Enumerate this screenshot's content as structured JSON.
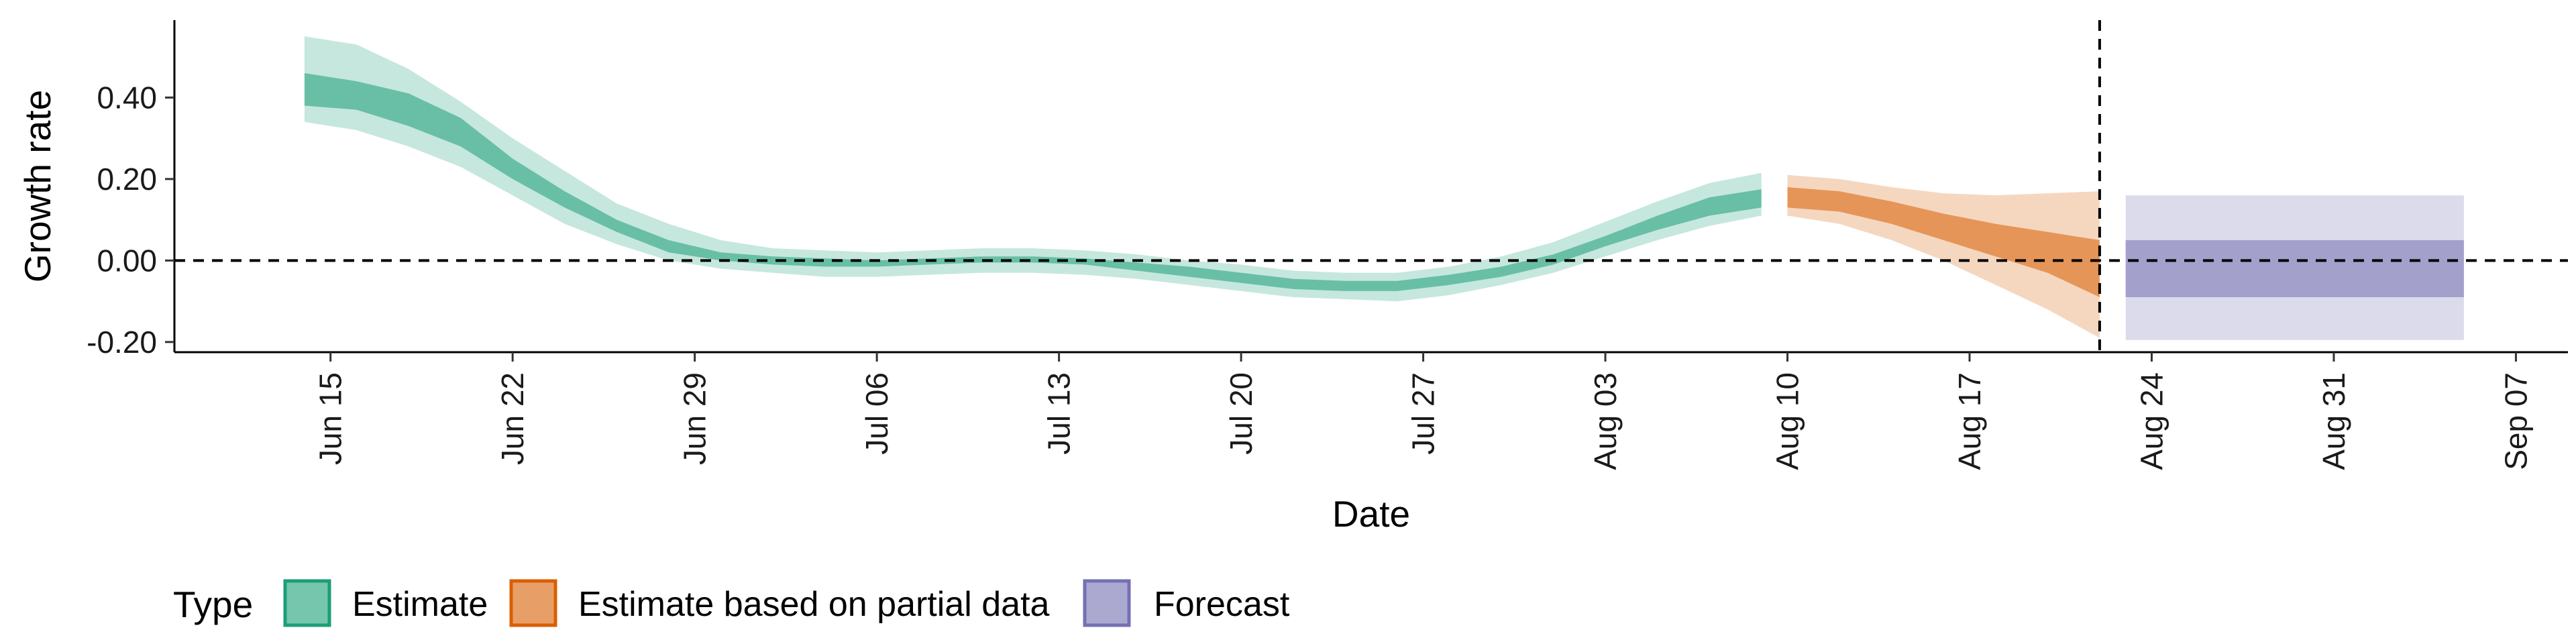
{
  "chart_data": {
    "type": "area",
    "xlabel": "Date",
    "ylabel": "Growth rate",
    "x_tick_labels": [
      "Jun 15",
      "Jun 22",
      "Jun 29",
      "Jul 06",
      "Jul 13",
      "Jul 20",
      "Jul 27",
      "Aug 03",
      "Aug 10",
      "Aug 17",
      "Aug 24",
      "Aug 31",
      "Sep 07"
    ],
    "y_tick_labels": [
      "-0.20",
      "0.00",
      "0.20",
      "0.40"
    ],
    "y_ticks": [
      -0.2,
      0.0,
      0.2,
      0.4
    ],
    "ylim": [
      -0.225,
      0.59
    ],
    "xlim": [
      "2020-06-09",
      "2020-09-09"
    ],
    "x_ticks": [
      "2020-06-15",
      "2020-06-22",
      "2020-06-29",
      "2020-07-06",
      "2020-07-13",
      "2020-07-20",
      "2020-07-27",
      "2020-08-03",
      "2020-08-10",
      "2020-08-17",
      "2020-08-24",
      "2020-08-31",
      "2020-09-07"
    ],
    "reference_lines": [
      {
        "orientation": "horizontal",
        "style": "dashed",
        "y": 0.0
      },
      {
        "orientation": "vertical",
        "style": "dashed",
        "x": "2020-08-22"
      }
    ],
    "legend": {
      "title": "Type",
      "position": "bottom-left"
    },
    "series": [
      {
        "name": "Estimate",
        "color": "#1B9E77",
        "x": [
          "2020-06-14",
          "2020-06-16",
          "2020-06-18",
          "2020-06-20",
          "2020-06-22",
          "2020-06-24",
          "2020-06-26",
          "2020-06-28",
          "2020-06-30",
          "2020-07-02",
          "2020-07-04",
          "2020-07-06",
          "2020-07-08",
          "2020-07-10",
          "2020-07-12",
          "2020-07-14",
          "2020-07-16",
          "2020-07-18",
          "2020-07-20",
          "2020-07-22",
          "2020-07-24",
          "2020-07-26",
          "2020-07-28",
          "2020-07-30",
          "2020-08-01",
          "2020-08-03",
          "2020-08-05",
          "2020-08-07",
          "2020-08-09"
        ],
        "lower_90": [
          0.34,
          0.32,
          0.28,
          0.23,
          0.16,
          0.09,
          0.04,
          0.0,
          -0.02,
          -0.03,
          -0.04,
          -0.04,
          -0.035,
          -0.03,
          -0.03,
          -0.035,
          -0.045,
          -0.06,
          -0.075,
          -0.09,
          -0.095,
          -0.1,
          -0.085,
          -0.06,
          -0.03,
          0.01,
          0.05,
          0.085,
          0.11
        ],
        "lower_50": [
          0.38,
          0.37,
          0.33,
          0.28,
          0.2,
          0.13,
          0.07,
          0.02,
          0.0,
          -0.01,
          -0.015,
          -0.015,
          -0.01,
          -0.005,
          -0.005,
          -0.01,
          -0.025,
          -0.04,
          -0.055,
          -0.07,
          -0.075,
          -0.075,
          -0.06,
          -0.04,
          -0.01,
          0.035,
          0.075,
          0.11,
          0.13
        ],
        "upper_50": [
          0.46,
          0.44,
          0.41,
          0.35,
          0.25,
          0.17,
          0.1,
          0.05,
          0.02,
          0.01,
          0.005,
          0.0,
          0.005,
          0.01,
          0.01,
          0.005,
          -0.005,
          -0.015,
          -0.03,
          -0.045,
          -0.05,
          -0.05,
          -0.035,
          -0.015,
          0.015,
          0.06,
          0.11,
          0.155,
          0.175
        ],
        "upper_90": [
          0.55,
          0.53,
          0.47,
          0.39,
          0.3,
          0.22,
          0.14,
          0.09,
          0.05,
          0.03,
          0.025,
          0.02,
          0.025,
          0.03,
          0.03,
          0.025,
          0.015,
          0.0,
          -0.01,
          -0.025,
          -0.03,
          -0.03,
          -0.015,
          0.01,
          0.045,
          0.095,
          0.145,
          0.19,
          0.215
        ]
      },
      {
        "name": "Estimate based on partial data",
        "color": "#D95F02",
        "x": [
          "2020-08-10",
          "2020-08-12",
          "2020-08-14",
          "2020-08-16",
          "2020-08-18",
          "2020-08-20",
          "2020-08-22"
        ],
        "lower_90": [
          0.11,
          0.09,
          0.05,
          0.0,
          -0.06,
          -0.12,
          -0.19
        ],
        "lower_50": [
          0.13,
          0.12,
          0.09,
          0.05,
          0.01,
          -0.03,
          -0.09
        ],
        "upper_50": [
          0.18,
          0.17,
          0.145,
          0.115,
          0.09,
          0.07,
          0.05
        ],
        "upper_90": [
          0.21,
          0.2,
          0.18,
          0.165,
          0.16,
          0.165,
          0.17
        ]
      },
      {
        "name": "Forecast",
        "color": "#7570B3",
        "x": [
          "2020-08-23",
          "2020-09-05"
        ],
        "lower_90": [
          -0.195,
          -0.195
        ],
        "lower_50": [
          -0.09,
          -0.09
        ],
        "upper_50": [
          0.05,
          0.05
        ],
        "upper_90": [
          0.16,
          0.16
        ]
      }
    ]
  }
}
